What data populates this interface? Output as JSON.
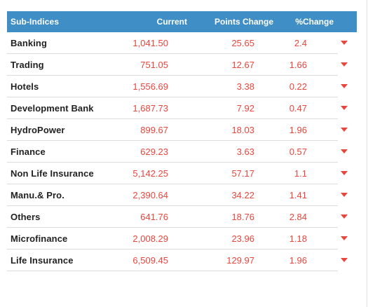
{
  "table": {
    "headers": {
      "name": "Sub-Indices",
      "current": "Current",
      "points": "Points Change",
      "pct": "%Change"
    },
    "trend_icon": "down-arrow-icon",
    "trend_color": "#e8453c",
    "header_color": "#3f8ec6",
    "rows": [
      {
        "name": "Banking",
        "current": "1,041.50",
        "points": "25.65",
        "pct": "2.4"
      },
      {
        "name": "Trading",
        "current": "751.05",
        "points": "12.67",
        "pct": "1.66"
      },
      {
        "name": "Hotels",
        "current": "1,556.69",
        "points": "3.38",
        "pct": "0.22"
      },
      {
        "name": "Development Bank",
        "current": "1,687.73",
        "points": "7.92",
        "pct": "0.47"
      },
      {
        "name": "HydroPower",
        "current": "899.67",
        "points": "18.03",
        "pct": "1.96"
      },
      {
        "name": "Finance",
        "current": "629.23",
        "points": "3.63",
        "pct": "0.57"
      },
      {
        "name": "Non Life Insurance",
        "current": "5,142.25",
        "points": "57.17",
        "pct": "1.1"
      },
      {
        "name": "Manu.& Pro.",
        "current": "2,390.64",
        "points": "34.22",
        "pct": "1.41"
      },
      {
        "name": "Others",
        "current": "641.76",
        "points": "18.76",
        "pct": "2.84"
      },
      {
        "name": "Microfinance",
        "current": "2,008.29",
        "points": "23.96",
        "pct": "1.18"
      },
      {
        "name": "Life Insurance",
        "current": "6,509.45",
        "points": "129.97",
        "pct": "1.96"
      }
    ]
  }
}
